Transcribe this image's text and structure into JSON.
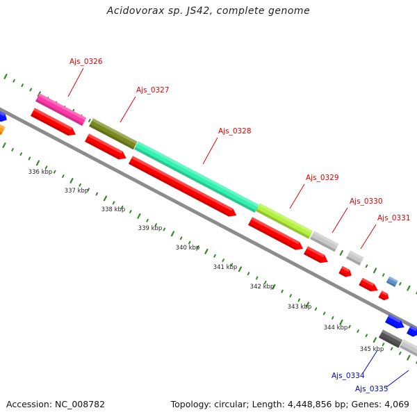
{
  "title": "Acidovorax sp. JS42, complete genome",
  "footer": {
    "accession": "Accession: NC_008782",
    "topology": "Topology: circular; Length: 4,448,856 bp; Genes: 4,069"
  },
  "ticks": [
    {
      "label": "336 kbp"
    },
    {
      "label": "337 kbp"
    },
    {
      "label": "338 kbp"
    },
    {
      "label": "339 kbp"
    },
    {
      "label": "340 kbp"
    },
    {
      "label": "341 kbp"
    },
    {
      "label": "342 kbp"
    },
    {
      "label": "343 kbp"
    },
    {
      "label": "344 kbp"
    },
    {
      "label": "345 kbp"
    }
  ],
  "gene_labels": [
    {
      "name": "Ajs_0326",
      "color": "#e00000"
    },
    {
      "name": "Ajs_0327",
      "color": "#e00000"
    },
    {
      "name": "Ajs_0328",
      "color": "#e00000"
    },
    {
      "name": "Ajs_0329",
      "color": "#e00000"
    },
    {
      "name": "Ajs_0330",
      "color": "#e00000"
    },
    {
      "name": "Ajs_0331",
      "color": "#e00000"
    },
    {
      "name": "Ajs_0334",
      "color": "#0000c8"
    },
    {
      "name": "Ajs_0335",
      "color": "#0000c8"
    }
  ],
  "colors": {
    "backbone": "#8c8c8c",
    "tick_green": "#2e8b22",
    "cds_red": "#ff0000",
    "pink": "#ff3aa8",
    "olive": "#7a8a20",
    "aqua": "#33f2b0",
    "lime": "#b4f040",
    "grey": "#c8c8c8",
    "blue": "#0a14ff",
    "orange": "#ff9a1a"
  }
}
